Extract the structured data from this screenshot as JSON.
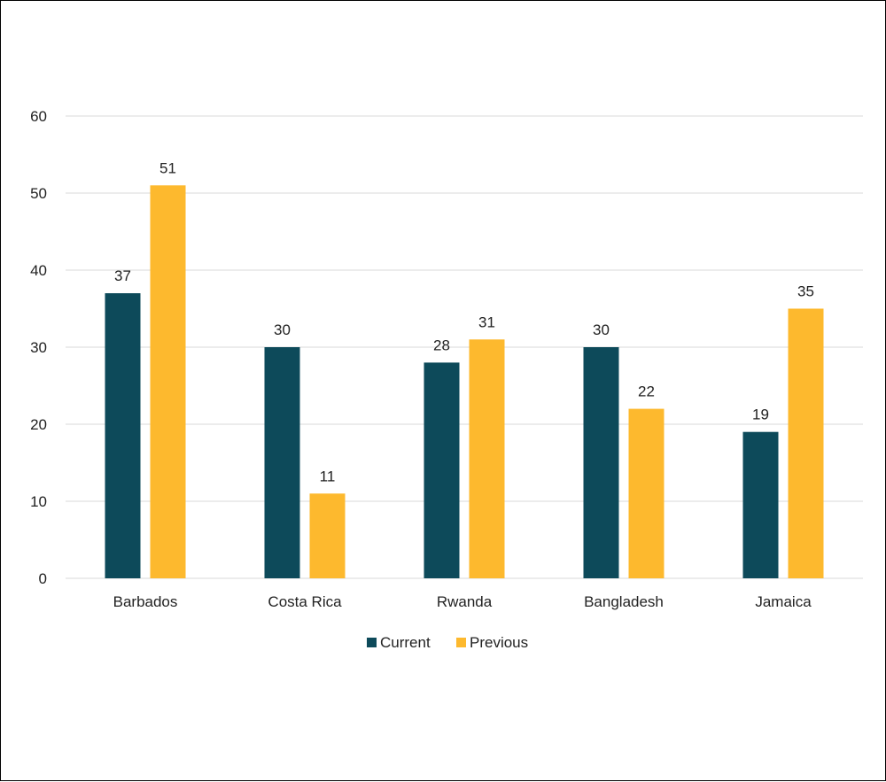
{
  "chart_data": {
    "type": "bar",
    "title": "",
    "xlabel": "",
    "ylabel": "",
    "ylim": [
      0,
      60
    ],
    "yticks": [
      0,
      10,
      20,
      30,
      40,
      50,
      60
    ],
    "grid": true,
    "legend_position": "bottom",
    "categories": [
      "Barbados",
      "Costa Rica",
      "Rwanda",
      "Bangladesh",
      "Jamaica"
    ],
    "series": [
      {
        "name": "Current",
        "color": "#0d4a5a",
        "values": [
          37,
          30,
          28,
          30,
          19
        ]
      },
      {
        "name": "Previous",
        "color": "#fdb92e",
        "values": [
          51,
          11,
          31,
          22,
          35
        ]
      }
    ]
  }
}
